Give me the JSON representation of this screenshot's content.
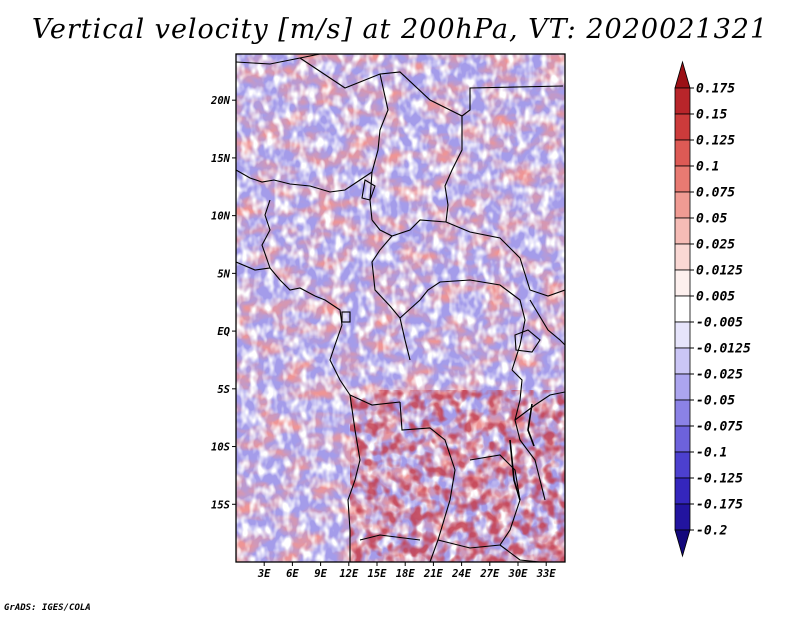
{
  "title": "Vertical velocity [m/s] at 200hPa, VT: 2020021321",
  "credit": "GrADS: IGES/COLA",
  "map": {
    "lat_range": [
      -20,
      24
    ],
    "lon_range": [
      0,
      35
    ],
    "lat_ticks": [
      {
        "value": 20,
        "label": "20N"
      },
      {
        "value": 15,
        "label": "15N"
      },
      {
        "value": 10,
        "label": "10N"
      },
      {
        "value": 5,
        "label": "5N"
      },
      {
        "value": 0,
        "label": "EQ"
      },
      {
        "value": -5,
        "label": "5S"
      },
      {
        "value": -10,
        "label": "10S"
      },
      {
        "value": -15,
        "label": "15S"
      }
    ],
    "lon_ticks": [
      {
        "value": 3,
        "label": "3E"
      },
      {
        "value": 6,
        "label": "6E"
      },
      {
        "value": 9,
        "label": "9E"
      },
      {
        "value": 12,
        "label": "12E"
      },
      {
        "value": 15,
        "label": "15E"
      },
      {
        "value": 18,
        "label": "18E"
      },
      {
        "value": 21,
        "label": "21E"
      },
      {
        "value": 24,
        "label": "24E"
      },
      {
        "value": 27,
        "label": "27E"
      },
      {
        "value": 30,
        "label": "30E"
      },
      {
        "value": 33,
        "label": "33E"
      }
    ]
  },
  "colorbar": {
    "levels": [
      "0.175",
      "0.15",
      "0.125",
      "0.1",
      "0.075",
      "0.05",
      "0.025",
      "0.0125",
      "0.005",
      "-0.005",
      "-0.0125",
      "-0.025",
      "-0.05",
      "-0.075",
      "-0.1",
      "-0.125",
      "-0.175",
      "-0.2"
    ],
    "colors": [
      "#9b1016",
      "#b8252a",
      "#cc3b3b",
      "#dd5a55",
      "#e87a72",
      "#f09b93",
      "#f6bcb6",
      "#fad8d4",
      "#fdf0ee",
      "#ffffff",
      "#e6e4fb",
      "#cbc6f6",
      "#aca5ef",
      "#8b82e6",
      "#6d62dc",
      "#4c40cf",
      "#3426bd",
      "#22149f",
      "#13087c"
    ]
  }
}
